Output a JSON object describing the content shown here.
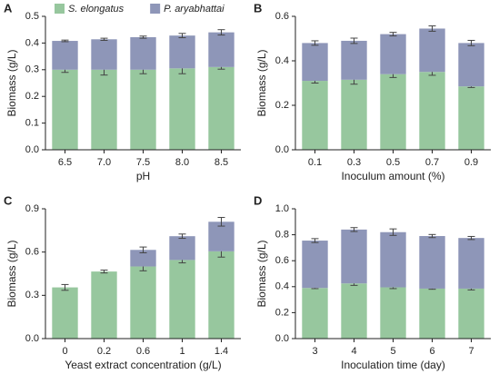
{
  "chart_data": [
    {
      "type": "bar",
      "stacked": true,
      "panel_label": "A",
      "xlabel": "pH",
      "ylabel": "Biomass (g/L)",
      "categories": [
        "6.5",
        "7.0",
        "7.5",
        "8.0",
        "8.5"
      ],
      "series": [
        {
          "name": "S. elongatus",
          "color": "#97c79e",
          "values": [
            0.3,
            0.3,
            0.3,
            0.305,
            0.31
          ],
          "errors": [
            0.01,
            0.02,
            0.015,
            0.02,
            0.008
          ]
        },
        {
          "name": "P. aryabhattai",
          "color": "#8e96b8",
          "values": [
            0.108,
            0.114,
            0.122,
            0.123,
            0.13
          ],
          "errors": [
            0.003,
            0.004,
            0.004,
            0.008,
            0.01
          ]
        }
      ],
      "ylim": [
        0,
        0.5
      ],
      "yticks": [
        {
          "value": 0,
          "label": "0.0"
        },
        0.1,
        0.2,
        0.3,
        0.4,
        0.5
      ],
      "legend": "top"
    },
    {
      "type": "bar",
      "stacked": true,
      "panel_label": "B",
      "xlabel": "Inoculum amount (%)",
      "ylabel": "Biomass (g/L)",
      "categories": [
        "0.1",
        "0.3",
        "0.5",
        "0.7",
        "0.9"
      ],
      "series": [
        {
          "name": "S. elongatus",
          "color": "#97c79e",
          "values": [
            0.31,
            0.315,
            0.34,
            0.35,
            0.285
          ],
          "errors": [
            0.01,
            0.02,
            0.015,
            0.015,
            0.005
          ]
        },
        {
          "name": "P. aryabhattai",
          "color": "#8e96b8",
          "values": [
            0.17,
            0.175,
            0.18,
            0.195,
            0.195
          ],
          "errors": [
            0.01,
            0.012,
            0.008,
            0.012,
            0.012
          ]
        }
      ],
      "ylim": [
        0,
        0.6
      ],
      "yticks": [
        {
          "value": 0,
          "label": "0.0"
        },
        0.2,
        0.4,
        0.6
      ]
    },
    {
      "type": "bar",
      "stacked": true,
      "panel_label": "C",
      "xlabel": "Yeast extract concentration (g/L)",
      "ylabel": "Biomass (g/L)",
      "categories": [
        "0",
        "0.2",
        "0.6",
        "1",
        "1.4"
      ],
      "series": [
        {
          "name": "S. elongatus",
          "color": "#97c79e",
          "values": [
            0.355,
            0.465,
            0.5,
            0.545,
            0.605
          ],
          "errors": [
            0.02,
            0.01,
            0.03,
            0.02,
            0.04
          ]
        },
        {
          "name": "P. aryabhattai",
          "color": "#8e96b8",
          "values": [
            0,
            0,
            0.115,
            0.165,
            0.205
          ],
          "errors": [
            0,
            0,
            0.02,
            0.015,
            0.03
          ]
        }
      ],
      "ylim": [
        0,
        0.9
      ],
      "yticks": [
        {
          "value": 0,
          "label": "0.0"
        },
        0.3,
        0.6,
        0.9
      ]
    },
    {
      "type": "bar",
      "stacked": true,
      "panel_label": "D",
      "xlabel": "Inoculation time (day)",
      "ylabel": "Biomass (g/L)",
      "categories": [
        "3",
        "4",
        "5",
        "6",
        "7"
      ],
      "series": [
        {
          "name": "S. elongatus",
          "color": "#97c79e",
          "values": [
            0.39,
            0.425,
            0.395,
            0.385,
            0.385
          ],
          "errors": [
            0.005,
            0.015,
            0.01,
            0.005,
            0.01
          ]
        },
        {
          "name": "P. aryabhattai",
          "color": "#8e96b8",
          "values": [
            0.365,
            0.415,
            0.425,
            0.405,
            0.39
          ],
          "errors": [
            0.015,
            0.015,
            0.025,
            0.012,
            0.012
          ]
        }
      ],
      "ylim": [
        0,
        1.0
      ],
      "yticks": [
        {
          "value": 0,
          "label": "0.0"
        },
        0.2,
        0.4,
        0.6,
        0.8,
        {
          "value": 1,
          "label": "1.0"
        }
      ]
    }
  ]
}
